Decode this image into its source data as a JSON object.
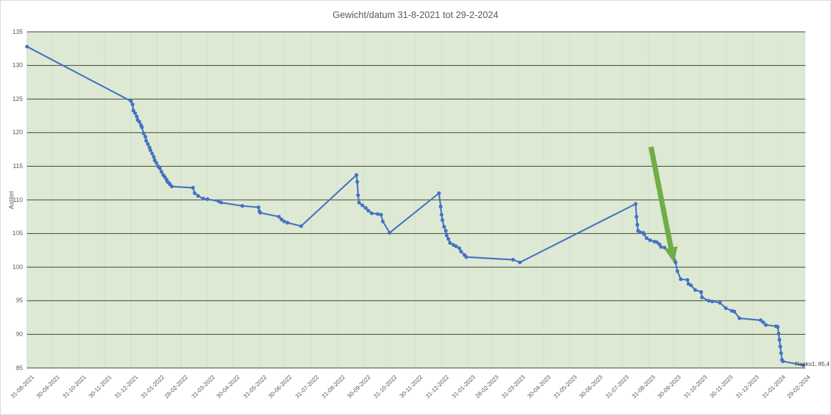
{
  "chart_data": {
    "type": "line",
    "title": "Gewicht/datum 31-8-2021 tot 29-2-2024",
    "xlabel": "",
    "ylabel": "Astitel",
    "ylim": [
      85,
      135
    ],
    "y_step": 5,
    "grid": "both",
    "legend_position": "none",
    "colors": {
      "line": "#4472C4",
      "plot_bg": "#dde9d3",
      "h_gridline": "#343f2e",
      "v_gridline": "#d3ded6",
      "arrow": "#70AD47",
      "text": "#595959",
      "label_text": "#404040"
    },
    "x_ticks": [
      "31-08-2021",
      "30-09-2021",
      "31-10-2021",
      "30-11-2021",
      "31-12-2021",
      "31-01-2022",
      "28-02-2022",
      "31-03-2022",
      "30-04-2022",
      "31-05-2022",
      "30-06-2022",
      "31-07-2022",
      "31-08-2022",
      "30-09-2022",
      "31-10-2022",
      "30-11-2022",
      "31-12-2022",
      "31-01-2023",
      "28-02-2023",
      "31-03-2023",
      "30-04-2023",
      "31-05-2023",
      "30-06-2023",
      "31-07-2023",
      "31-08-2023",
      "30-09-2023",
      "31-10-2023",
      "30-11-2023",
      "31-12-2023",
      "31-01-2024",
      "29-02-2024"
    ],
    "series": [
      {
        "name": "Reeks1",
        "last_point_label": "Reeks1; 85,4",
        "points": [
          [
            "31-08-2021",
            132.8
          ],
          [
            "31-12-2021",
            124.7
          ],
          [
            "02-01-2022",
            124.2
          ],
          [
            "03-01-2022",
            123.3
          ],
          [
            "05-01-2022",
            122.9
          ],
          [
            "07-01-2022",
            122.4
          ],
          [
            "08-01-2022",
            121.9
          ],
          [
            "10-01-2022",
            121.6
          ],
          [
            "12-01-2022",
            121.1
          ],
          [
            "13-01-2022",
            120.8
          ],
          [
            "15-01-2022",
            119.9
          ],
          [
            "17-01-2022",
            119.4
          ],
          [
            "18-01-2022",
            118.8
          ],
          [
            "20-01-2022",
            118.3
          ],
          [
            "22-01-2022",
            117.8
          ],
          [
            "23-01-2022",
            117.4
          ],
          [
            "25-01-2022",
            116.9
          ],
          [
            "27-01-2022",
            116.4
          ],
          [
            "28-01-2022",
            115.9
          ],
          [
            "30-01-2022",
            115.5
          ],
          [
            "01-02-2022",
            115.0
          ],
          [
            "03-02-2022",
            114.7
          ],
          [
            "05-02-2022",
            114.2
          ],
          [
            "07-02-2022",
            113.7
          ],
          [
            "09-02-2022",
            113.4
          ],
          [
            "11-02-2022",
            113.0
          ],
          [
            "12-02-2022",
            112.7
          ],
          [
            "14-02-2022",
            112.5
          ],
          [
            "15-02-2022",
            112.3
          ],
          [
            "17-02-2022",
            112.0
          ],
          [
            "14-03-2022",
            111.8
          ],
          [
            "16-03-2022",
            111.0
          ],
          [
            "20-03-2022",
            110.6
          ],
          [
            "26-03-2022",
            110.2
          ],
          [
            "31-03-2022",
            110.1
          ],
          [
            "13-04-2022",
            109.8
          ],
          [
            "16-04-2022",
            109.6
          ],
          [
            "11-05-2022",
            109.1
          ],
          [
            "30-05-2022",
            108.9
          ],
          [
            "31-05-2022",
            108.3
          ],
          [
            "01-06-2022",
            108.1
          ],
          [
            "23-06-2022",
            107.5
          ],
          [
            "26-06-2022",
            107.1
          ],
          [
            "29-06-2022",
            106.8
          ],
          [
            "03-07-2022",
            106.6
          ],
          [
            "19-07-2022",
            106.1
          ],
          [
            "22-09-2022",
            113.7
          ],
          [
            "23-09-2022",
            112.7
          ],
          [
            "24-09-2022",
            110.7
          ],
          [
            "25-09-2022",
            109.6
          ],
          [
            "29-09-2022",
            109.2
          ],
          [
            "03-10-2022",
            108.8
          ],
          [
            "06-10-2022",
            108.4
          ],
          [
            "10-10-2022",
            108.0
          ],
          [
            "17-10-2022",
            107.9
          ],
          [
            "21-10-2022",
            107.8
          ],
          [
            "23-10-2022",
            106.8
          ],
          [
            "31-10-2022",
            105.1
          ],
          [
            "28-12-2022",
            111.0
          ],
          [
            "30-12-2022",
            109.0
          ],
          [
            "31-12-2022",
            107.8
          ],
          [
            "01-01-2023",
            107.0
          ],
          [
            "03-01-2023",
            106.0
          ],
          [
            "05-01-2023",
            105.4
          ],
          [
            "06-01-2023",
            104.7
          ],
          [
            "08-01-2023",
            104.2
          ],
          [
            "10-01-2023",
            103.6
          ],
          [
            "14-01-2023",
            103.3
          ],
          [
            "17-01-2023",
            103.1
          ],
          [
            "21-01-2023",
            102.8
          ],
          [
            "23-01-2023",
            102.3
          ],
          [
            "27-01-2023",
            101.8
          ],
          [
            "29-01-2023",
            101.5
          ],
          [
            "25-03-2023",
            101.1
          ],
          [
            "02-04-2023",
            100.7
          ],
          [
            "16-08-2023",
            109.4
          ],
          [
            "17-08-2023",
            107.5
          ],
          [
            "18-08-2023",
            106.3
          ],
          [
            "19-08-2023",
            105.4
          ],
          [
            "21-08-2023",
            105.2
          ],
          [
            "25-08-2023",
            105.1
          ],
          [
            "26-08-2023",
            104.9
          ],
          [
            "29-08-2023",
            104.3
          ],
          [
            "02-09-2023",
            104.0
          ],
          [
            "07-09-2023",
            103.8
          ],
          [
            "10-09-2023",
            103.7
          ],
          [
            "13-09-2023",
            103.4
          ],
          [
            "15-09-2023",
            103.0
          ],
          [
            "19-09-2023",
            102.9
          ],
          [
            "26-09-2023",
            102.2
          ],
          [
            "29-09-2023",
            101.7
          ],
          [
            "30-09-2023",
            101.2
          ],
          [
            "01-10-2023",
            100.9
          ],
          [
            "02-10-2023",
            100.7
          ],
          [
            "04-10-2023",
            99.4
          ],
          [
            "08-10-2023",
            98.2
          ],
          [
            "16-10-2023",
            98.1
          ],
          [
            "17-10-2023",
            97.5
          ],
          [
            "20-10-2023",
            97.3
          ],
          [
            "25-10-2023",
            96.6
          ],
          [
            "01-11-2023",
            96.3
          ],
          [
            "02-11-2023",
            95.5
          ],
          [
            "10-11-2023",
            95.0
          ],
          [
            "14-11-2023",
            94.9
          ],
          [
            "23-11-2023",
            94.7
          ],
          [
            "30-11-2023",
            93.9
          ],
          [
            "07-12-2023",
            93.5
          ],
          [
            "10-12-2023",
            93.4
          ],
          [
            "16-12-2023",
            92.4
          ],
          [
            "10-01-2024",
            92.1
          ],
          [
            "13-01-2024",
            91.8
          ],
          [
            "16-01-2024",
            91.4
          ],
          [
            "28-01-2024",
            91.2
          ],
          [
            "30-01-2024",
            91.1
          ],
          [
            "31-01-2024",
            90.1
          ],
          [
            "01-02-2024",
            89.2
          ],
          [
            "02-02-2024",
            88.2
          ],
          [
            "03-02-2024",
            87.2
          ],
          [
            "04-02-2024",
            86.2
          ],
          [
            "05-02-2024",
            86.0
          ],
          [
            "29-02-2024",
            85.4
          ]
        ]
      }
    ],
    "annotations": [
      {
        "kind": "arrow",
        "from": {
          "date": "03-09-2023",
          "value": 117.9
        },
        "to": {
          "date": "27-09-2023",
          "value": 102.6
        }
      }
    ]
  }
}
